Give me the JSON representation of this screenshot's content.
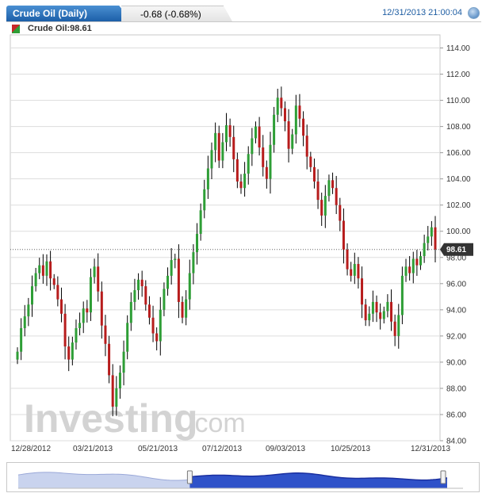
{
  "header": {
    "title": "Crude Oil (Daily)",
    "change": "-0.68 (-0.68%)",
    "datetime": "12/31/2013 21:00:04",
    "series_label": "Crude Oil:98.61"
  },
  "watermark": {
    "brand": "Investing",
    "suffix": ".com"
  },
  "colors": {
    "up": "#2e9e36",
    "down": "#b71c1c",
    "wick": "#000000",
    "accent": "#1f5ea3",
    "navigator_fill": "#2f52c9"
  },
  "icons": {
    "clock": "clock-icon",
    "series": "candle-swatch-icon"
  },
  "chart_data": {
    "type": "candlestick",
    "ylim": [
      84,
      115
    ],
    "y_ticks": [
      "84.00",
      "86.00",
      "88.00",
      "90.00",
      "92.00",
      "94.00",
      "96.00",
      "98.00",
      "100.00",
      "102.00",
      "104.00",
      "106.00",
      "108.00",
      "110.00",
      "112.00",
      "114.00"
    ],
    "x_tick_labels": [
      "12/28/2012",
      "03/21/2013",
      "05/21/2013",
      "07/12/2013",
      "09/03/2013",
      "10/25/2013",
      "12/31/2013"
    ],
    "x_tick_positions": [
      0.0,
      0.16,
      0.32,
      0.48,
      0.64,
      0.8,
      1.0
    ],
    "last_price": 98.61,
    "last_price_label": "98.61",
    "closes": [
      90.8,
      92.6,
      93.5,
      94.4,
      95.8,
      96.8,
      97.4,
      96.6,
      97.7,
      96.4,
      95.9,
      94.8,
      93.7,
      91.2,
      90.2,
      91.5,
      92.6,
      93.0,
      94.1,
      93.8,
      96.5,
      97.3,
      95.4,
      92.8,
      91.4,
      89.0,
      86.6,
      88.0,
      89.2,
      90.8,
      93.0,
      94.6,
      95.5,
      96.3,
      95.8,
      94.4,
      93.4,
      92.2,
      91.6,
      94.0,
      95.6,
      96.6,
      97.8,
      97.9,
      94.6,
      93.4,
      94.8,
      96.8,
      98.4,
      99.8,
      101.6,
      103.2,
      104.8,
      106.2,
      107.5,
      105.4,
      106.8,
      108.1,
      107.2,
      105.5,
      103.8,
      103.3,
      104.4,
      105.9,
      107.1,
      108.0,
      106.4,
      104.9,
      104.0,
      106.6,
      108.9,
      110.2,
      109.4,
      108.4,
      106.3,
      107.4,
      109.6,
      108.6,
      107.3,
      105.7,
      104.9,
      103.8,
      102.4,
      101.2,
      102.7,
      103.9,
      103.3,
      102.0,
      100.8,
      98.6,
      97.1,
      96.6,
      97.5,
      96.4,
      94.4,
      93.2,
      93.7,
      94.6,
      93.8,
      93.3,
      93.9,
      94.6,
      93.1,
      92.0,
      93.6,
      96.6,
      97.3,
      96.8,
      97.9,
      97.4,
      98.1,
      99.1,
      99.6,
      100.3,
      98.61
    ],
    "navigator": {
      "range_labels": [],
      "selected_range": [
        0.4,
        1.0
      ]
    }
  }
}
